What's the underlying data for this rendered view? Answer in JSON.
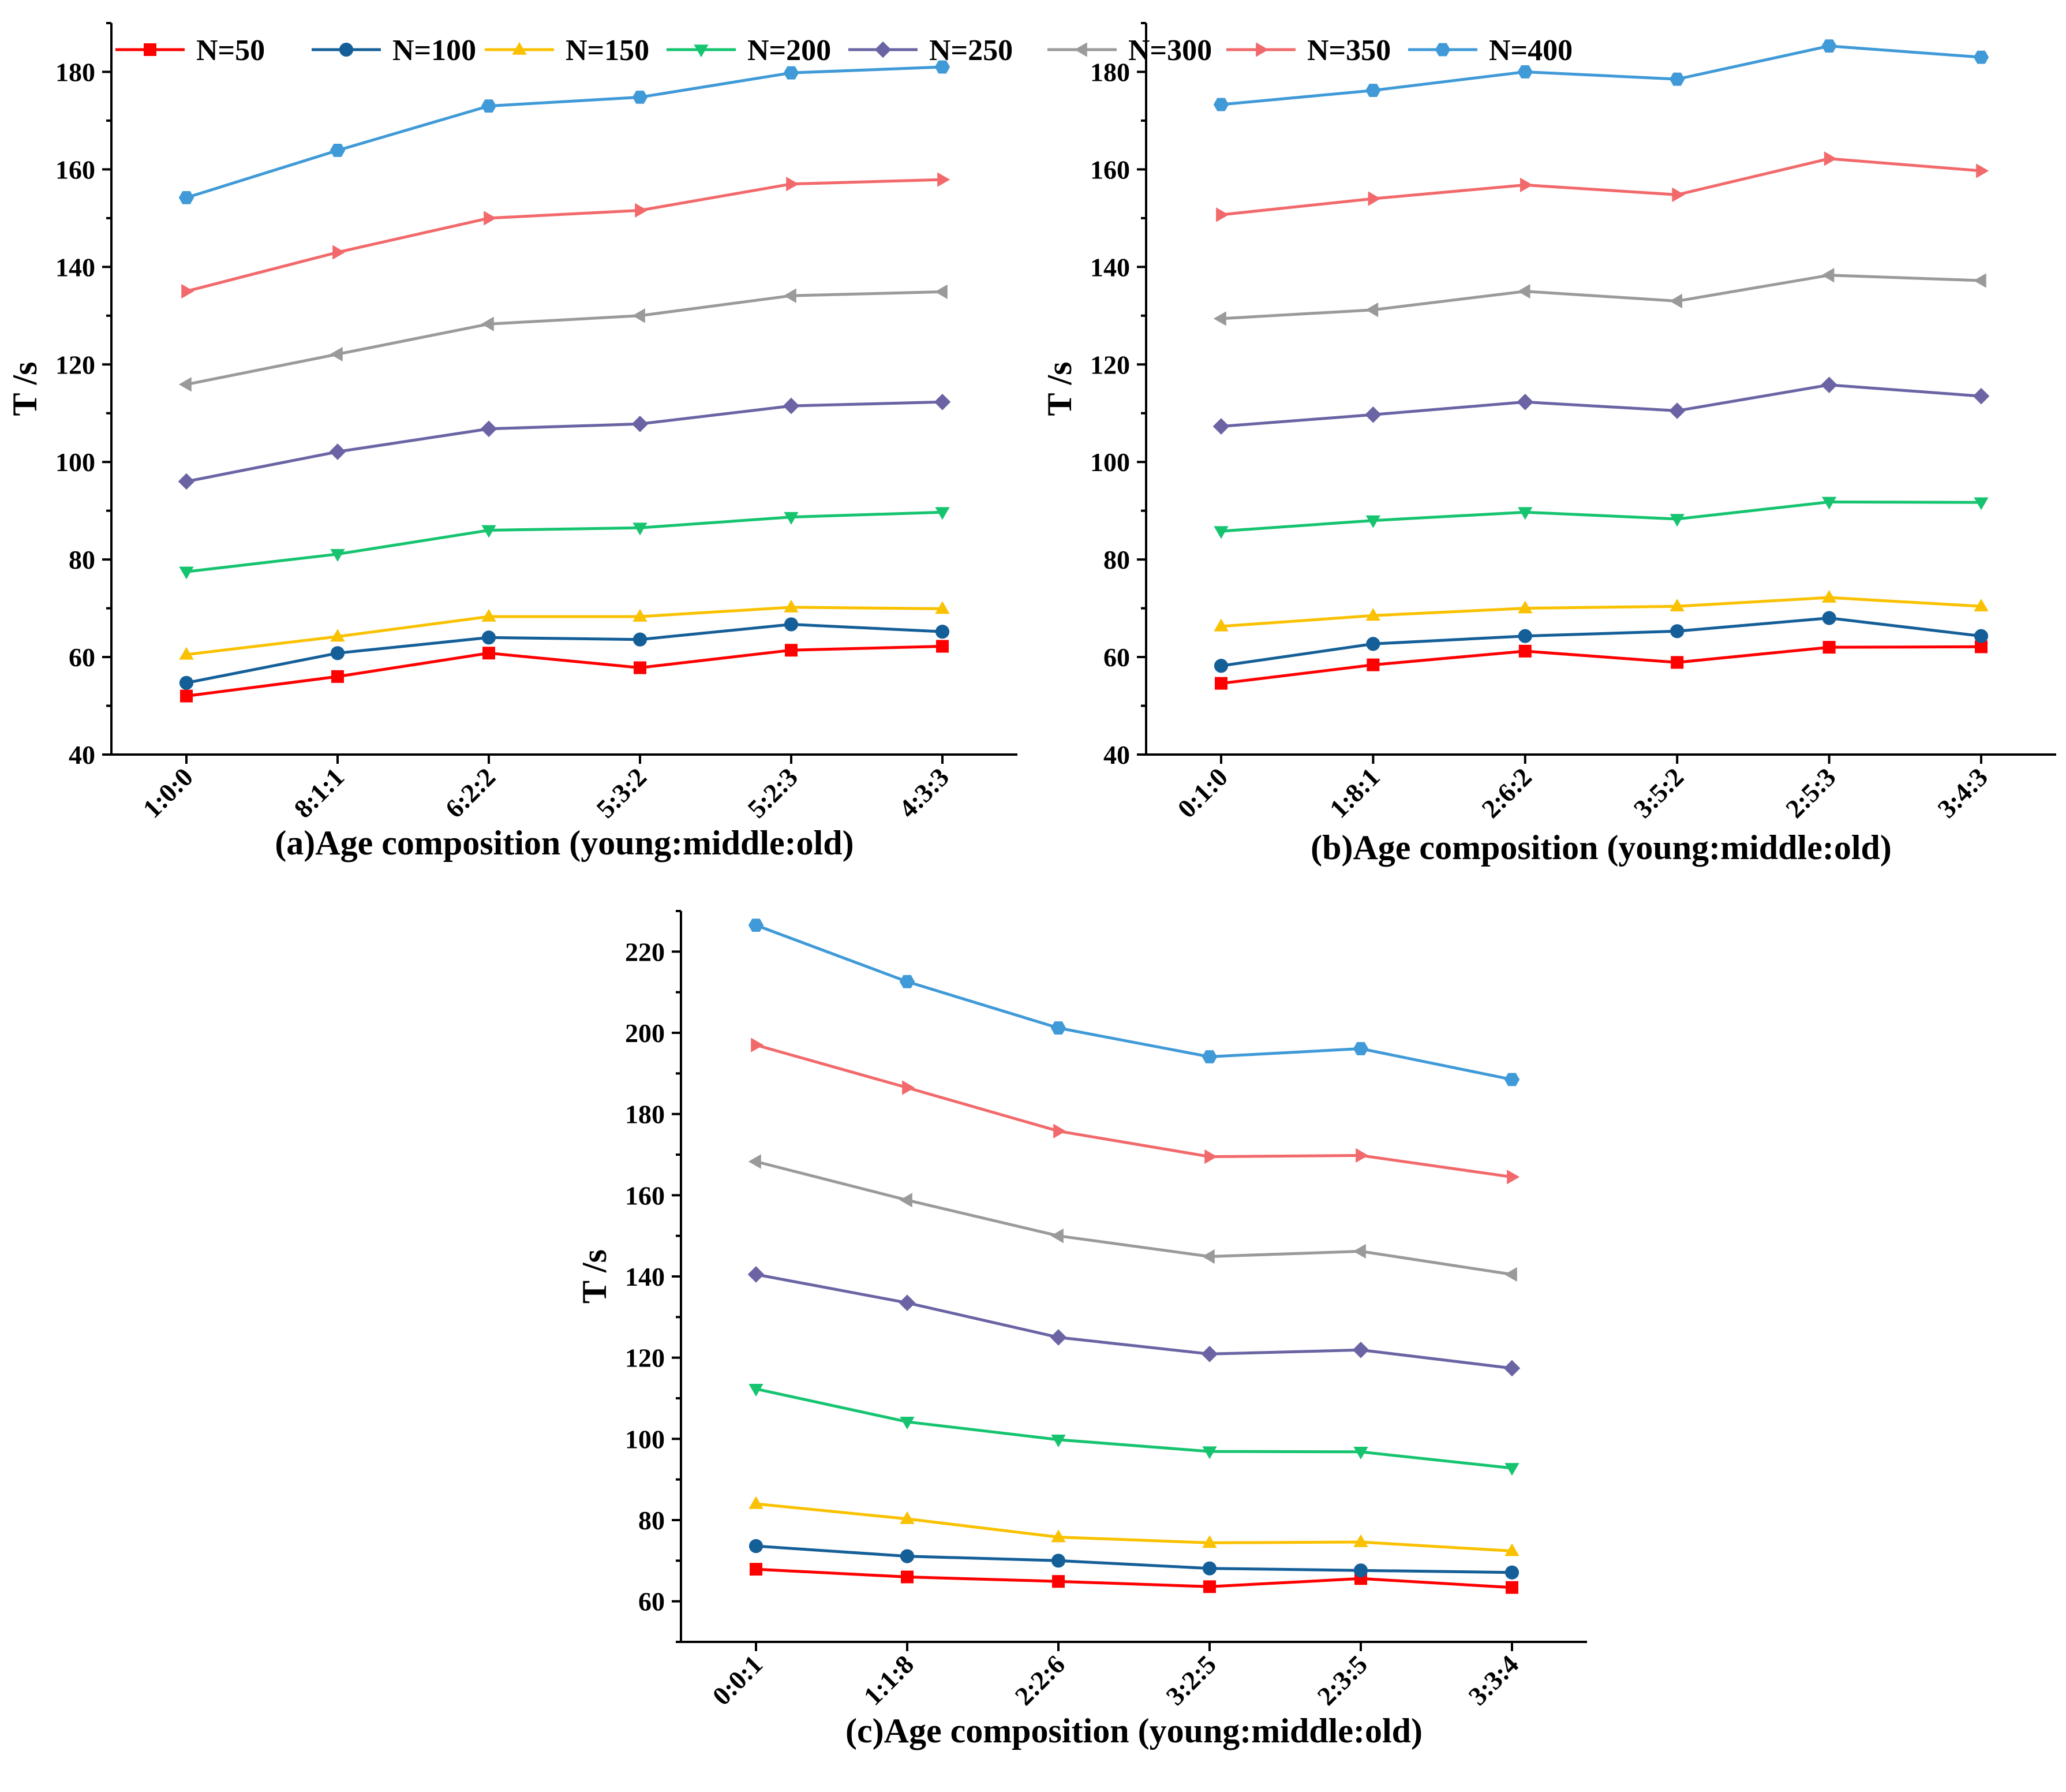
{
  "legend": {
    "entries": [
      {
        "label": "N=50",
        "color": "#ff0000",
        "marker": "square"
      },
      {
        "label": "N=100",
        "color": "#155f99",
        "marker": "circle"
      },
      {
        "label": "N=150",
        "color": "#f9c100",
        "marker": "triangle-up"
      },
      {
        "label": "N=200",
        "color": "#16c470",
        "marker": "triangle-down"
      },
      {
        "label": "N=250",
        "color": "#6a64a4",
        "marker": "diamond"
      },
      {
        "label": "N=300",
        "color": "#9a9a9a",
        "marker": "triangle-left"
      },
      {
        "label": "N=350",
        "color": "#f2696b",
        "marker": "triangle-right"
      },
      {
        "label": "N=400",
        "color": "#3f9ad7",
        "marker": "hexagon"
      }
    ]
  },
  "chart_data": [
    {
      "type": "line",
      "panel": "a",
      "xlabel": "(a)Age composition (young:middle:old)",
      "ylabel": "T /s",
      "categories": [
        "1:0:0",
        "8:1:1",
        "6:2:2",
        "5:3:2",
        "5:2:3",
        "4:3:3"
      ],
      "ylim": [
        40,
        190
      ],
      "yticks": [
        40,
        60,
        80,
        100,
        120,
        140,
        160,
        180
      ],
      "series": [
        {
          "name": "N=50",
          "values": [
            52,
            56,
            60.8,
            57.8,
            61.4,
            62.2
          ]
        },
        {
          "name": "N=100",
          "values": [
            54.7,
            60.8,
            64,
            63.6,
            66.7,
            65.2
          ]
        },
        {
          "name": "N=150",
          "values": [
            60.5,
            64.2,
            68.3,
            68.3,
            70.2,
            69.9
          ]
        },
        {
          "name": "N=200",
          "values": [
            77.5,
            81.1,
            86,
            86.5,
            88.7,
            89.7
          ]
        },
        {
          "name": "N=250",
          "values": [
            96,
            102.1,
            106.8,
            107.8,
            111.5,
            112.3
          ]
        },
        {
          "name": "N=300",
          "values": [
            115.9,
            122.1,
            128.3,
            130,
            134.1,
            134.9
          ]
        },
        {
          "name": "N=350",
          "values": [
            135,
            143,
            150,
            151.6,
            157,
            157.9
          ]
        },
        {
          "name": "N=400",
          "values": [
            154.2,
            163.9,
            173,
            174.8,
            179.8,
            181
          ]
        }
      ]
    },
    {
      "type": "line",
      "panel": "b",
      "xlabel": "(b)Age composition (young:middle:old)",
      "ylabel": "T /s",
      "categories": [
        "0:1:0",
        "1:8:1",
        "2:6:2",
        "3:5:2",
        "2:5:3",
        "3:4:3"
      ],
      "ylim": [
        40,
        190
      ],
      "yticks": [
        40,
        60,
        80,
        100,
        120,
        140,
        160,
        180
      ],
      "series": [
        {
          "name": "N=50",
          "values": [
            54.6,
            58.4,
            61.2,
            58.9,
            62,
            62.1
          ]
        },
        {
          "name": "N=100",
          "values": [
            58.2,
            62.7,
            64.3,
            65.3,
            68,
            64.3
          ]
        },
        {
          "name": "N=150",
          "values": [
            66.3,
            68.5,
            70,
            70.4,
            72.2,
            70.4
          ]
        },
        {
          "name": "N=200",
          "values": [
            85.8,
            88,
            89.7,
            88.3,
            91.8,
            91.7
          ]
        },
        {
          "name": "N=250",
          "values": [
            107.3,
            109.7,
            112.3,
            110.5,
            115.8,
            113.5
          ]
        },
        {
          "name": "N=300",
          "values": [
            129.4,
            131.2,
            135,
            133,
            138.3,
            137.2
          ]
        },
        {
          "name": "N=350",
          "values": [
            150.7,
            154,
            156.8,
            154.8,
            162.2,
            159.7
          ]
        },
        {
          "name": "N=400",
          "values": [
            173.3,
            176.2,
            180,
            178.5,
            185.3,
            183
          ]
        }
      ]
    },
    {
      "type": "line",
      "panel": "c",
      "xlabel": "(c)Age composition (young:middle:old)",
      "ylabel": "T /s",
      "categories": [
        "0:0:1",
        "1:1:8",
        "2:2:6",
        "3:2:5",
        "2:3:5",
        "3:3:4"
      ],
      "ylim": [
        50,
        230
      ],
      "yticks": [
        60,
        80,
        100,
        120,
        140,
        160,
        180,
        200,
        220
      ],
      "series": [
        {
          "name": "N=50",
          "values": [
            67.9,
            66,
            64.9,
            63.6,
            65.6,
            63.4
          ]
        },
        {
          "name": "N=100",
          "values": [
            73.6,
            71.1,
            70,
            68.1,
            67.6,
            67.1
          ]
        },
        {
          "name": "N=150",
          "values": [
            84,
            80.3,
            75.8,
            74.4,
            74.6,
            72.4
          ]
        },
        {
          "name": "N=200",
          "values": [
            112.3,
            104.2,
            99.8,
            96.9,
            96.8,
            92.8
          ]
        },
        {
          "name": "N=250",
          "values": [
            140.5,
            133.5,
            125,
            120.9,
            121.9,
            117.4
          ]
        },
        {
          "name": "N=300",
          "values": [
            168.3,
            158.8,
            150,
            144.9,
            146.2,
            140.5
          ]
        },
        {
          "name": "N=350",
          "values": [
            197,
            186.5,
            175.8,
            169.5,
            169.8,
            164.5
          ]
        },
        {
          "name": "N=400",
          "values": [
            226.5,
            212.6,
            201.2,
            194.1,
            196.1,
            188.5
          ]
        }
      ]
    }
  ]
}
